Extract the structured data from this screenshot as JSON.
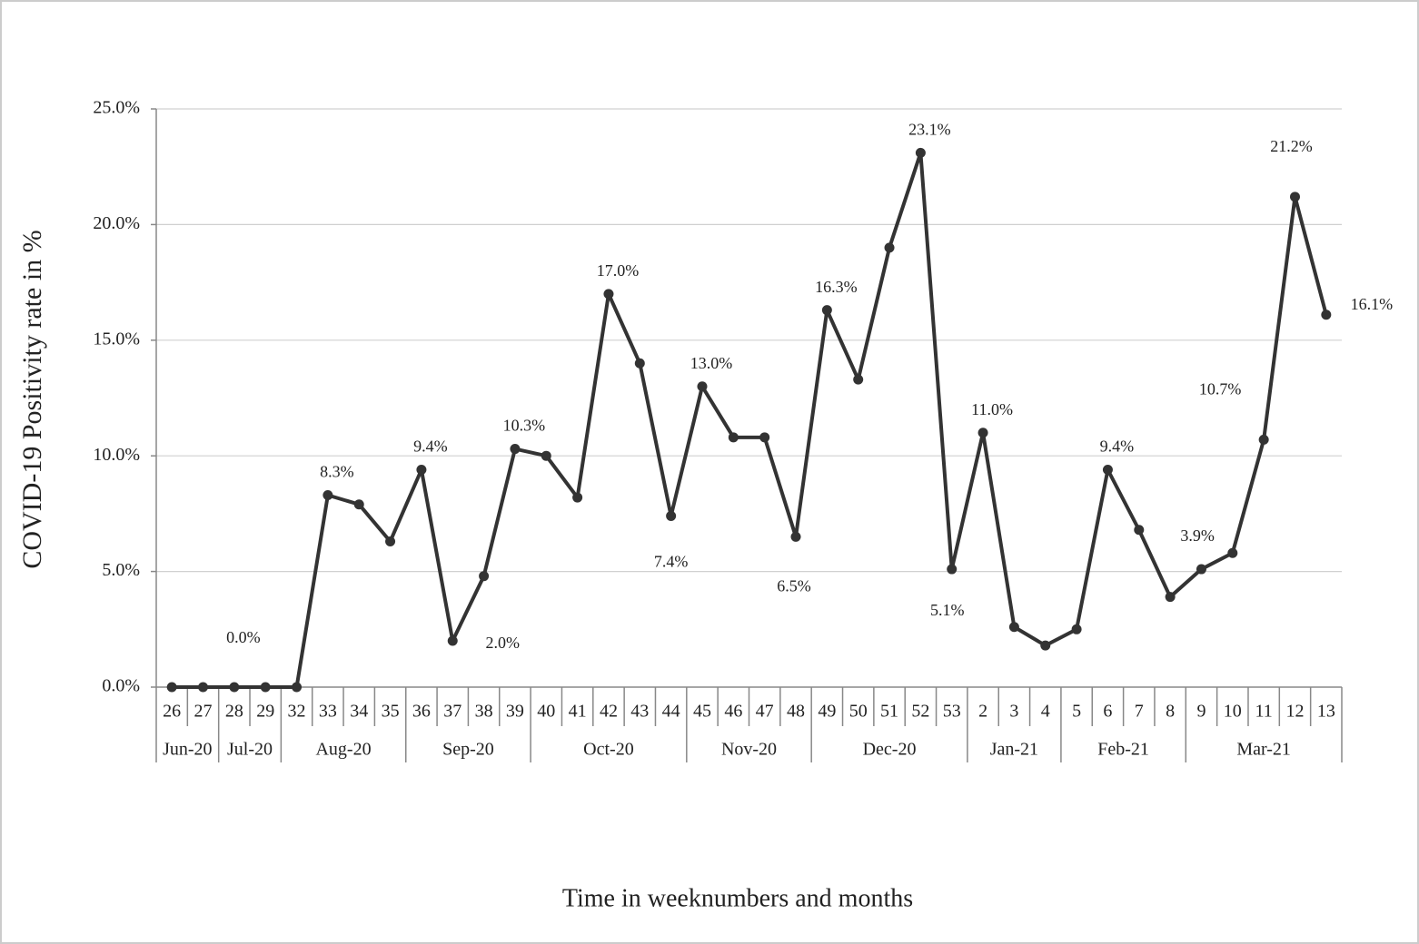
{
  "chart_data": {
    "type": "line",
    "x_label": "Time in weeknumbers and months",
    "y_label": "COVID-19 Positivity rate in %",
    "categories": [
      "26",
      "27",
      "28",
      "29",
      "32",
      "33",
      "34",
      "35",
      "36",
      "37",
      "38",
      "39",
      "40",
      "41",
      "42",
      "43",
      "44",
      "45",
      "46",
      "47",
      "48",
      "49",
      "50",
      "51",
      "52",
      "53",
      "2",
      "3",
      "4",
      "5",
      "6",
      "7",
      "8",
      "9",
      "10",
      "11",
      "12",
      "13"
    ],
    "months": [
      "Jun-20",
      "Jun-20",
      "Jul-20",
      "Jul-20",
      "Aug-20",
      "Aug-20",
      "Aug-20",
      "Aug-20",
      "Sep-20",
      "Sep-20",
      "Sep-20",
      "Sep-20",
      "Oct-20",
      "Oct-20",
      "Oct-20",
      "Oct-20",
      "Oct-20",
      "Nov-20",
      "Nov-20",
      "Nov-20",
      "Nov-20",
      "Dec-20",
      "Dec-20",
      "Dec-20",
      "Dec-20",
      "Dec-20",
      "Jan-21",
      "Jan-21",
      "Jan-21",
      "Feb-21",
      "Feb-21",
      "Feb-21",
      "Feb-21",
      "Mar-21",
      "Mar-21",
      "Mar-21",
      "Mar-21",
      "Mar-21"
    ],
    "series": [
      {
        "name": "COVID-19 Positivity rate",
        "color": "#333333",
        "values": [
          0,
          0,
          0,
          0,
          0,
          8.3,
          7.9,
          6.3,
          9.4,
          2.0,
          4.8,
          10.3,
          10.0,
          8.2,
          17.0,
          14.0,
          7.4,
          13.0,
          10.8,
          10.8,
          6.5,
          16.3,
          13.3,
          19.0,
          23.1,
          5.1,
          11.0,
          2.6,
          1.8,
          2.5,
          9.4,
          6.8,
          3.9,
          5.1,
          5.8,
          10.7,
          21.2,
          16.1
        ],
        "value_labels": [
          null,
          null,
          "0.0%",
          null,
          null,
          "8.3%",
          null,
          null,
          "9.4%",
          "2.0%",
          null,
          "10.3%",
          null,
          null,
          "17.0%",
          null,
          "7.4%",
          "13.0%",
          null,
          null,
          "6.5%",
          "16.3%",
          null,
          null,
          "23.1%",
          "5.1%",
          "11.0%",
          null,
          null,
          null,
          "9.4%",
          null,
          "3.9%",
          null,
          null,
          "10.7%",
          "21.2%",
          "16.1%"
        ]
      }
    ],
    "ylim": [
      0,
      25
    ],
    "yticks": [
      {
        "value": 0,
        "label": "0.0%"
      },
      {
        "value": 5,
        "label": "5.0%"
      },
      {
        "value": 10,
        "label": "10.0%"
      },
      {
        "value": 15,
        "label": "15.0%"
      },
      {
        "value": 20,
        "label": "20.0%"
      },
      {
        "value": 25,
        "label": "25.0%"
      }
    ],
    "grid": true
  }
}
